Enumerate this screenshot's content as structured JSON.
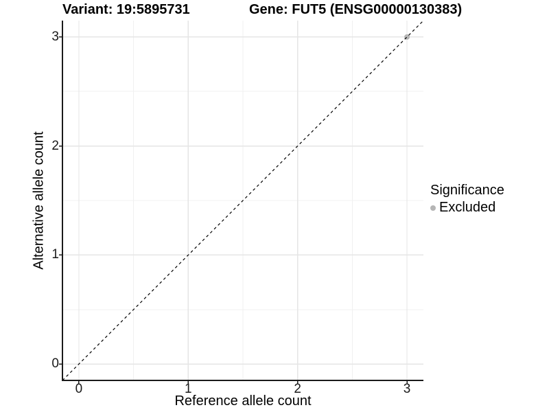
{
  "chart_data": {
    "type": "scatter",
    "titles": {
      "left": "Variant: 19:5895731",
      "right": "Gene: FUT5 (ENSG00000130383)"
    },
    "xlabel": "Reference allele count",
    "ylabel": "Alternative allele count",
    "xlim": [
      -0.15,
      3.15
    ],
    "ylim": [
      -0.15,
      3.15
    ],
    "x_ticks": [
      0,
      1,
      2,
      3
    ],
    "y_ticks": [
      0,
      1,
      2,
      3
    ],
    "x_minor_ticks": [
      0.5,
      1.5,
      2.5
    ],
    "y_minor_ticks": [
      0.5,
      1.5,
      2.5
    ],
    "grid": true,
    "identity_line": {
      "style": "dashed",
      "slope": 1,
      "intercept": 0
    },
    "series": [
      {
        "name": "Excluded",
        "color": "#b5b5b5",
        "points": [
          {
            "x": 3,
            "y": 3
          }
        ]
      }
    ],
    "legend": {
      "title": "Significance",
      "position": "right",
      "items": [
        {
          "label": "Excluded",
          "color": "#b5b5b5"
        }
      ]
    },
    "colors": {
      "point": "#b5b5b5",
      "grid_major": "#e5e5e5",
      "grid_minor": "#f0f0f0",
      "axis": "#1a1a1a",
      "identity_line": "#000000",
      "background": "#ffffff"
    }
  }
}
